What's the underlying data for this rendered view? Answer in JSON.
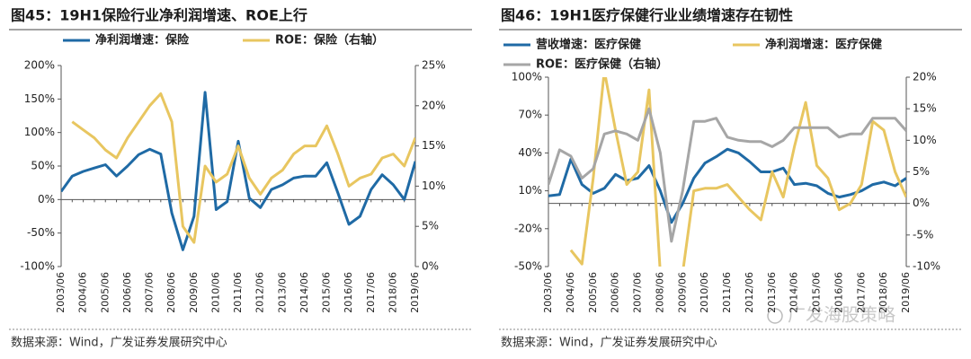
{
  "chart_data": [
    {
      "type": "line",
      "title": "图45：19H1保险行业净利润增速、ROE上行",
      "categories": [
        "2003/06",
        null,
        "2004/06",
        null,
        "2005/06",
        null,
        "2006/06",
        null,
        "2007/06",
        null,
        "2008/06",
        null,
        "2009/06",
        null,
        "2010/06",
        null,
        "2011/06",
        null,
        "2012/06",
        null,
        "2013/06",
        null,
        "2014/06",
        null,
        "2015/06",
        null,
        "2016/06",
        null,
        "2017/06",
        null,
        "2018/06",
        null,
        "2019/06"
      ],
      "series": [
        {
          "name": "净利润增速：保险",
          "color": "#1f6aa5",
          "values": [
            12,
            35,
            42,
            47,
            52,
            35,
            50,
            67,
            75,
            68,
            -20,
            -75,
            -25,
            160,
            -15,
            -3,
            87,
            2,
            -12,
            15,
            22,
            32,
            35,
            35,
            55,
            10,
            -37,
            -25,
            15,
            37,
            22,
            0,
            57
          ]
        },
        {
          "name": "ROE：保险（右轴）",
          "color": "#e8c660",
          "axis": "y2",
          "values": [
            null,
            18,
            17,
            16,
            14.5,
            13.5,
            16,
            18,
            20,
            21.5,
            18,
            5,
            3,
            12.5,
            10.5,
            11.5,
            15,
            11,
            9,
            11,
            12,
            14,
            15,
            15,
            17.5,
            14,
            10,
            11,
            11.5,
            13.5,
            14,
            12.5,
            16
          ]
        }
      ],
      "ylim": [
        -100,
        200
      ],
      "yticks": [
        {
          "value": -100,
          "label": "-100%"
        },
        {
          "value": -50,
          "label": "-50%"
        },
        {
          "value": 0,
          "label": "0%"
        },
        {
          "value": 50,
          "label": "50%"
        },
        {
          "value": 100,
          "label": "100%"
        },
        {
          "value": 150,
          "label": "150%"
        },
        {
          "value": 200,
          "label": "200%"
        }
      ],
      "y2lim": [
        0,
        25
      ],
      "y2ticks": [
        {
          "value": 0,
          "label": "0%"
        },
        {
          "value": 5,
          "label": "5%"
        },
        {
          "value": 10,
          "label": "10%"
        },
        {
          "value": 15,
          "label": "15%"
        },
        {
          "value": 20,
          "label": "20%"
        },
        {
          "value": 25,
          "label": "25%"
        }
      ],
      "source": "数据来源：Wind，广发证券发展研究中心"
    },
    {
      "type": "line",
      "title": "图46：19H1医疗保健行业业绩增速存在韧性",
      "categories": [
        "2003/06",
        null,
        "2004/06",
        null,
        "2005/06",
        null,
        "2006/06",
        null,
        "2007/06",
        null,
        "2008/06",
        null,
        "2009/06",
        null,
        "2010/06",
        null,
        "2011/06",
        null,
        "2012/06",
        null,
        "2013/06",
        null,
        "2014/06",
        null,
        "2015/06",
        null,
        "2016/06",
        null,
        "2017/06",
        null,
        "2018/06",
        null,
        "2019/06"
      ],
      "series": [
        {
          "name": "营收增速：医疗保健",
          "color": "#1f6aa5",
          "values": [
            6,
            7,
            35,
            15,
            8,
            12,
            23,
            18,
            20,
            30,
            10,
            -15,
            0,
            20,
            32,
            37,
            43,
            40,
            33,
            25,
            25,
            28,
            15,
            16,
            14,
            8,
            5,
            7,
            10,
            15,
            17,
            14,
            20
          ]
        },
        {
          "name": "净利润增速：医疗保健",
          "color": "#e8c660",
          "values": [
            null,
            null,
            -37,
            -48,
            20,
            105,
            58,
            15,
            25,
            90,
            -55,
            null,
            -55,
            10,
            12,
            12,
            15,
            5,
            -5,
            -13,
            25,
            5,
            45,
            80,
            30,
            20,
            -5,
            0,
            15,
            65,
            58,
            25,
            5
          ]
        },
        {
          "name": "ROE：医疗保健（右轴）",
          "color": "#a6a6a6",
          "axis": "y2",
          "values": [
            3,
            8.5,
            7.5,
            4,
            5.5,
            11,
            11.5,
            11,
            10,
            15,
            8,
            -6,
            2,
            13,
            13,
            13.5,
            10.5,
            10,
            9.8,
            9.8,
            9,
            10,
            12,
            12,
            12,
            12,
            10.5,
            11,
            11,
            13.5,
            13.5,
            13.5,
            11.5
          ]
        }
      ],
      "ylim": [
        -50,
        100
      ],
      "yticks": [
        {
          "value": -50,
          "label": "-50%"
        },
        {
          "value": -20,
          "label": "-20%"
        },
        {
          "value": 10,
          "label": "10%"
        },
        {
          "value": 40,
          "label": "40%"
        },
        {
          "value": 70,
          "label": "70%"
        },
        {
          "value": 100,
          "label": "100%"
        }
      ],
      "y2lim": [
        -10,
        20
      ],
      "y2ticks": [
        {
          "value": -10,
          "label": "-10%"
        },
        {
          "value": -5,
          "label": "-5%"
        },
        {
          "value": 0,
          "label": "0%"
        },
        {
          "value": 5,
          "label": "5%"
        },
        {
          "value": 10,
          "label": "10%"
        },
        {
          "value": 15,
          "label": "15%"
        },
        {
          "value": 20,
          "label": "20%"
        }
      ],
      "source": "数据来源：Wind，广发证券发展研究中心"
    }
  ],
  "watermark": "广发海股策略"
}
